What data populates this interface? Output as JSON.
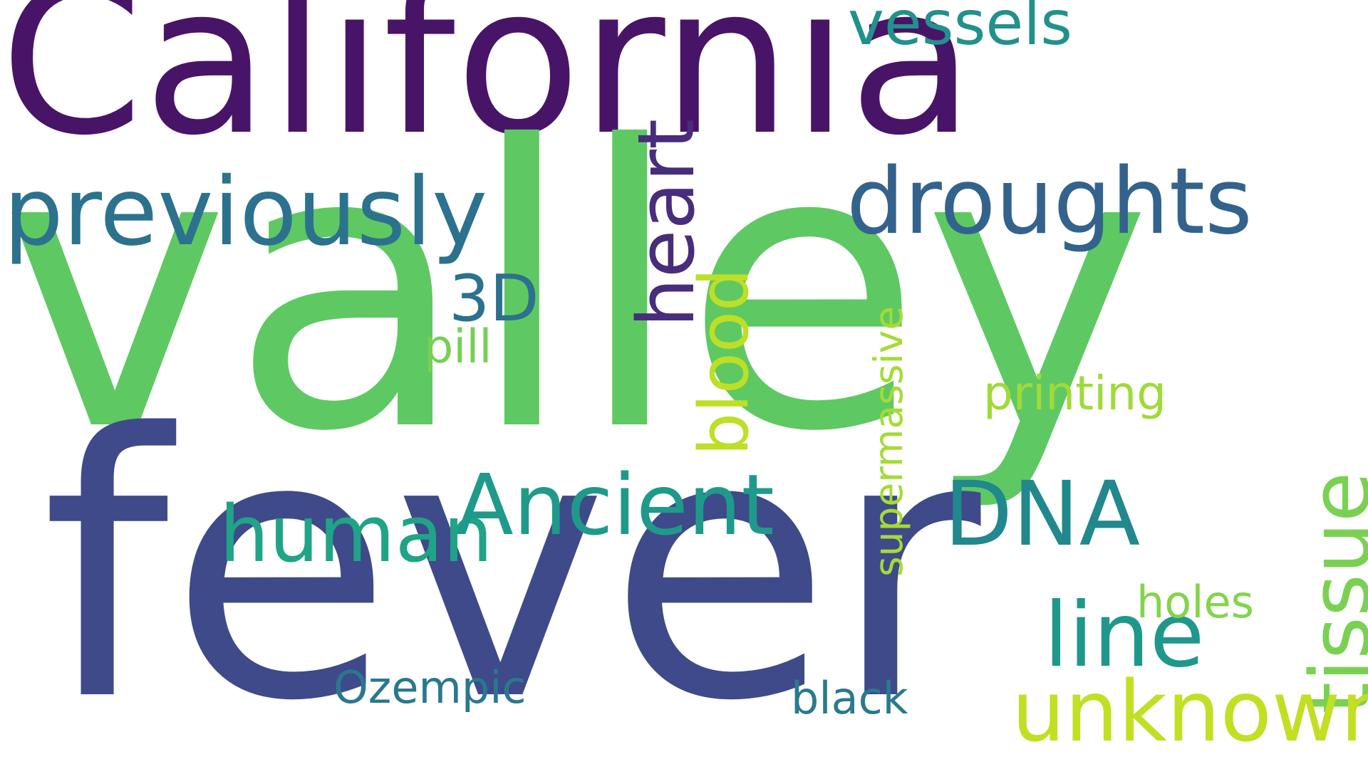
{
  "words": {
    "california": "California",
    "valley": "valley",
    "fever": "fever",
    "previously": "previously",
    "droughts": "droughts",
    "vessels": "vessels",
    "heart": "heart",
    "blood": "blood",
    "three_d": "3D",
    "pill": "pill",
    "supermassive": "supermassive",
    "printing": "printing",
    "tissue": "tissue",
    "human": "human",
    "ancient": "Ancient",
    "dna": "DNA",
    "line": "line",
    "holes": "holes",
    "unknown": "unknown",
    "ozempic": "Ozempic",
    "black": "black"
  },
  "colors": {
    "background": "#ffffff",
    "california": "#481467",
    "valley": "#5ec962",
    "fever": "#3e4a89",
    "previously": "#2c728e",
    "droughts": "#33638d",
    "vessels": "#21918c",
    "heart": "#472d7b",
    "blood": "#bddf26",
    "three_d": "#2c718e",
    "pill": "#75d054",
    "supermassive": "#a5db36",
    "printing": "#a0da39",
    "tissue": "#7ad151",
    "human": "#20a386",
    "ancient": "#1f9a8a",
    "dna": "#21888d",
    "line": "#1f988b",
    "holes": "#84d44b",
    "unknown": "#c2df23",
    "ozempic": "#2a788e",
    "black": "#297a8e"
  }
}
